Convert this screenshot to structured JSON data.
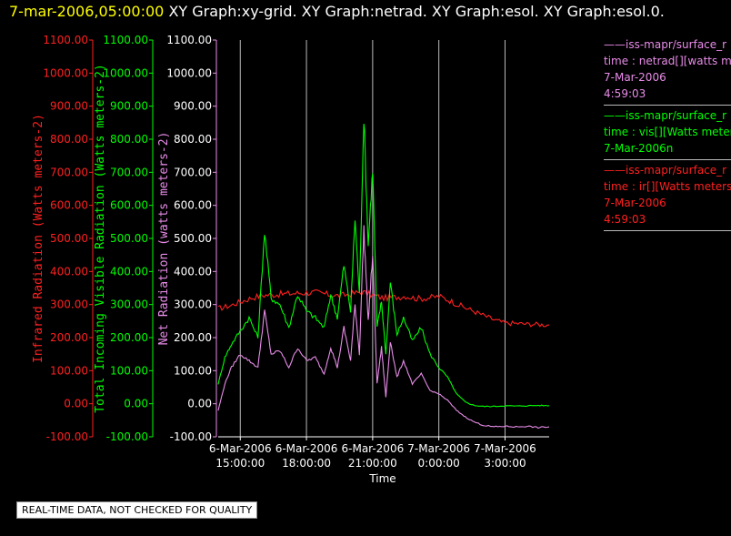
{
  "header": {
    "date": "7-mar-2006,05:00:00",
    "graphs": "XY Graph:xy-grid.  XY Graph:netrad.  XY Graph:esol.  XY Graph:esol.0."
  },
  "note": "REAL-TIME DATA, NOT CHECKED FOR QUALITY",
  "legend": [
    {
      "line1": "iss-mapr/surface_r",
      "line2": "time : netrad[][watts me",
      "line3": "7-Mar-2006",
      "line4": "4:59:03",
      "color": "#e88ce8"
    },
    {
      "line1": "iss-mapr/surface_r",
      "line2": "time : vis[][Watts meter",
      "line3": "7-Mar-2006n",
      "line4": "",
      "color": "#00ff00"
    },
    {
      "line1": "iss-mapr/surface_r",
      "line2": "time : ir[][Watts meters",
      "line3": "7-Mar-2006",
      "line4": "4:59:03",
      "color": "#ff2020"
    }
  ],
  "chart_data": {
    "type": "line",
    "xlabel": "Time",
    "x_ticks": [
      {
        "line1": "6-Mar-2006",
        "line2": "15:00:00",
        "h": 15
      },
      {
        "line1": "6-Mar-2006",
        "line2": "18:00:00",
        "h": 18
      },
      {
        "line1": "6-Mar-2006",
        "line2": "21:00:00",
        "h": 21
      },
      {
        "line1": "7-Mar-2006",
        "line2": "0:00:00",
        "h": 24
      },
      {
        "line1": "7-Mar-2006",
        "line2": "3:00:00",
        "h": 27
      }
    ],
    "xlim": [
      "6-Mar-2006 14:00",
      "7-Mar-2006 05:00"
    ],
    "ylim": [
      -100,
      1100
    ],
    "y_ticks": [
      "-100.00",
      "0.00",
      "100.00",
      "200.00",
      "300.00",
      "400.00",
      "500.00",
      "600.00",
      "700.00",
      "800.00",
      "900.00",
      "1000.00",
      "1100.00"
    ],
    "axes": [
      {
        "label": "Infrared Radiation (Watts meters-2)",
        "color": "#ff2020"
      },
      {
        "label": "Total Incoming Visible Radiation (Watts meters-2)",
        "color": "#00ff00"
      },
      {
        "label": "Net Radiation (watts meters-2)",
        "color": "#e88ce8"
      }
    ],
    "grid": "vertical lines at x ticks",
    "series": [
      {
        "name": "time : ir[][Watts meters",
        "color": "#ff2020",
        "x": [
          14,
          14.5,
          15,
          15.5,
          16,
          16.5,
          17,
          17.5,
          18,
          18.5,
          19,
          19.5,
          20,
          20.5,
          21,
          21.5,
          22,
          22.5,
          23,
          23.5,
          24,
          24.5,
          25,
          25.5,
          26,
          26.5,
          27,
          27.5,
          28,
          28.5,
          29
        ],
        "y": [
          288,
          296,
          308,
          320,
          328,
          330,
          332,
          334,
          336,
          336,
          330,
          326,
          332,
          338,
          328,
          320,
          322,
          326,
          318,
          320,
          325,
          312,
          296,
          282,
          268,
          254,
          244,
          243,
          241,
          240,
          238
        ]
      },
      {
        "name": "time : vis[][Watts meter",
        "color": "#00ff00",
        "x": [
          14,
          14.3,
          14.6,
          15,
          15.4,
          15.8,
          16.1,
          16.4,
          16.8,
          17.2,
          17.6,
          18,
          18.4,
          18.8,
          19.1,
          19.4,
          19.7,
          20,
          20.2,
          20.4,
          20.6,
          20.8,
          21,
          21.2,
          21.4,
          21.6,
          21.8,
          22.1,
          22.4,
          22.8,
          23.2,
          23.6,
          24,
          24.4,
          24.8,
          25.2,
          25.6,
          26,
          26.5,
          27,
          27.5,
          28,
          28.5,
          29
        ],
        "y": [
          60,
          140,
          180,
          220,
          260,
          200,
          520,
          320,
          300,
          230,
          330,
          280,
          260,
          230,
          330,
          260,
          420,
          280,
          560,
          330,
          870,
          480,
          710,
          230,
          310,
          150,
          370,
          210,
          260,
          190,
          230,
          150,
          110,
          80,
          30,
          5,
          -5,
          -8,
          -8,
          -6,
          -7,
          -6,
          -5,
          -6
        ]
      },
      {
        "name": "time : netrad[][watts me",
        "color": "#e88ce8",
        "x": [
          14,
          14.3,
          14.6,
          15,
          15.4,
          15.8,
          16.1,
          16.4,
          16.8,
          17.2,
          17.6,
          18,
          18.4,
          18.8,
          19.1,
          19.4,
          19.7,
          20,
          20.2,
          20.4,
          20.6,
          20.8,
          21,
          21.2,
          21.4,
          21.6,
          21.8,
          22.1,
          22.4,
          22.8,
          23.2,
          23.6,
          24,
          24.4,
          24.8,
          25.2,
          25.6,
          26,
          26.5,
          27,
          27.5,
          28,
          28.5,
          29
        ],
        "y": [
          -20,
          60,
          110,
          150,
          130,
          110,
          280,
          150,
          160,
          110,
          170,
          130,
          140,
          90,
          170,
          110,
          230,
          130,
          300,
          150,
          530,
          250,
          450,
          60,
          170,
          20,
          190,
          80,
          130,
          60,
          90,
          40,
          30,
          10,
          -20,
          -40,
          -55,
          -65,
          -70,
          -68,
          -70,
          -68,
          -72,
          -70
        ]
      }
    ]
  }
}
